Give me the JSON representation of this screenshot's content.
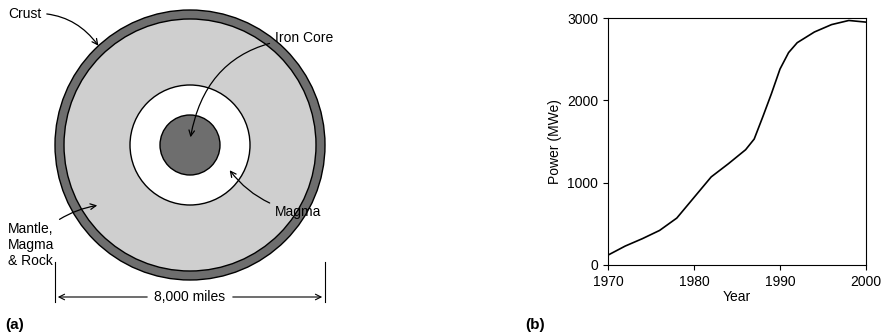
{
  "diagram": {
    "panel_label": "(a)",
    "labels": {
      "crust": "Crust",
      "iron_core": "Iron Core",
      "magma": "Magma",
      "mantle": "Mantle,\nMagma\n& Rock"
    },
    "diameter": "8,000 miles"
  },
  "chart_data": {
    "type": "line",
    "panel_label": "(b)",
    "x_label": "Year",
    "y_label": "Power (MWe)",
    "x": [
      1970,
      1972,
      1974,
      1976,
      1978,
      1980,
      1982,
      1984,
      1986,
      1987,
      1988,
      1989,
      1990,
      1991,
      1992,
      1994,
      1996,
      1998,
      2000
    ],
    "values": [
      120,
      230,
      320,
      420,
      570,
      820,
      1070,
      1230,
      1400,
      1530,
      1800,
      2080,
      2380,
      2580,
      2700,
      2830,
      2920,
      2970,
      2950
    ],
    "color": "#000000",
    "xlim": [
      1970,
      2000
    ],
    "ylim": [
      0,
      3000
    ],
    "xticks": [
      1970,
      1980,
      1990,
      2000
    ],
    "yticks": [
      0,
      1000,
      2000,
      3000
    ],
    "grid": false
  }
}
